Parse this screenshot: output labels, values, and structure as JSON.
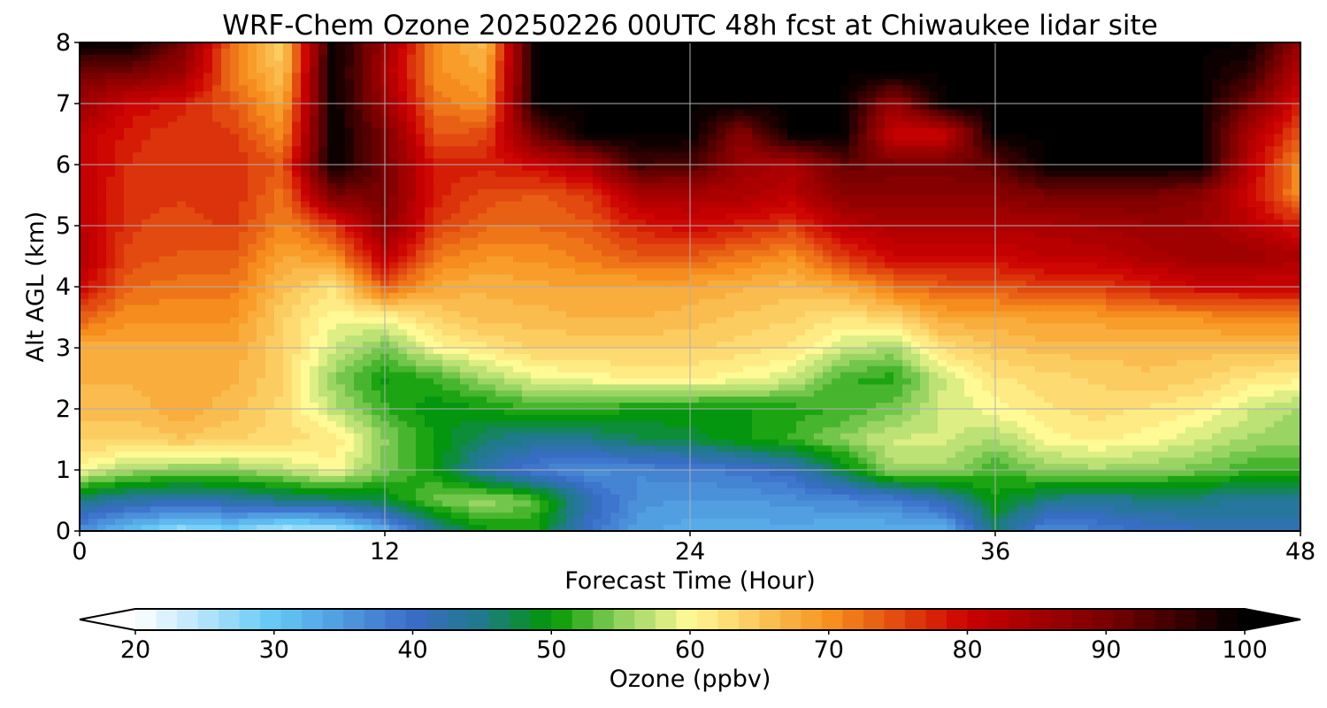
{
  "chart_data": {
    "type": "heatmap",
    "title": "WRF-Chem Ozone  20250226 00UTC 48h fcst at Chiwaukee lidar site",
    "xlabel": "Forecast Time (Hour)",
    "ylabel": "Alt AGL (km)",
    "xlim": [
      0,
      48
    ],
    "ylim": [
      0,
      8
    ],
    "xticks": [
      0,
      12,
      24,
      36,
      48
    ],
    "yticks": [
      0,
      1,
      2,
      3,
      4,
      5,
      6,
      7,
      8
    ],
    "grid": true,
    "x": [
      0,
      2,
      4,
      6,
      8,
      10,
      12,
      14,
      16,
      18,
      20,
      22,
      24,
      26,
      28,
      30,
      32,
      34,
      36,
      38,
      40,
      42,
      44,
      46,
      48
    ],
    "y": [
      0,
      0.5,
      1,
      1.5,
      2,
      2.5,
      3,
      3.5,
      4,
      4.5,
      5,
      5.5,
      6,
      6.5,
      7,
      7.5,
      8
    ],
    "z": [
      [
        36,
        30,
        26,
        28,
        24,
        25,
        32,
        44,
        50,
        50,
        40,
        34,
        33,
        33,
        33,
        32,
        32,
        32,
        46,
        36,
        38,
        40,
        41,
        42,
        42
      ],
      [
        45,
        43,
        42,
        43,
        45,
        46,
        48,
        54,
        56,
        53,
        42,
        36,
        35,
        35,
        36,
        37,
        38,
        42,
        50,
        45,
        44,
        45,
        45,
        44,
        44
      ],
      [
        60,
        56,
        55,
        55,
        57,
        60,
        54,
        50,
        42,
        38,
        36,
        37,
        38,
        39,
        41,
        48,
        56,
        56,
        52,
        55,
        56,
        55,
        54,
        52,
        52
      ],
      [
        64,
        64,
        65,
        64,
        63,
        62,
        55,
        50,
        46,
        44,
        45,
        47,
        48,
        50,
        52,
        55,
        58,
        58,
        56,
        60,
        61,
        60,
        58,
        56,
        55
      ],
      [
        66,
        66,
        68,
        66,
        63,
        57,
        52,
        49,
        50,
        52,
        52,
        50,
        50,
        50,
        51,
        52,
        54,
        58,
        60,
        62,
        63,
        62,
        61,
        58,
        56
      ],
      [
        67,
        67,
        67,
        67,
        64,
        55,
        50,
        52,
        56,
        59,
        60,
        61,
        61,
        60,
        58,
        52,
        51,
        58,
        62,
        63,
        64,
        65,
        64,
        62,
        61
      ],
      [
        67,
        68,
        68,
        68,
        64,
        58,
        54,
        60,
        62,
        64,
        64,
        64,
        64,
        63,
        62,
        58,
        56,
        63,
        65,
        66,
        66,
        66,
        66,
        66,
        66
      ],
      [
        74,
        70,
        70,
        70,
        64,
        60,
        60,
        64,
        66,
        66,
        67,
        67,
        66,
        65,
        64,
        62,
        64,
        68,
        68,
        69,
        69,
        70,
        70,
        71,
        71
      ],
      [
        80,
        73,
        72,
        72,
        66,
        62,
        74,
        68,
        67,
        68,
        68,
        68,
        68,
        67,
        66,
        68,
        72,
        74,
        74,
        76,
        76,
        78,
        80,
        80,
        80
      ],
      [
        84,
        75,
        74,
        74,
        68,
        70,
        82,
        72,
        70,
        70,
        72,
        74,
        74,
        72,
        70,
        76,
        80,
        80,
        80,
        82,
        82,
        84,
        86,
        86,
        84
      ],
      [
        82,
        76,
        75,
        76,
        71,
        76,
        88,
        76,
        73,
        73,
        74,
        78,
        80,
        78,
        76,
        82,
        84,
        84,
        84,
        84,
        85,
        86,
        86,
        82,
        78
      ],
      [
        82,
        76,
        76,
        77,
        72,
        90,
        90,
        78,
        75,
        74,
        76,
        84,
        84,
        84,
        82,
        88,
        88,
        88,
        88,
        90,
        90,
        90,
        88,
        80,
        70
      ],
      [
        82,
        77,
        76,
        77,
        74,
        100,
        90,
        78,
        78,
        80,
        84,
        95,
        94,
        86,
        84,
        92,
        90,
        90,
        92,
        100,
        100,
        100,
        100,
        82,
        70
      ],
      [
        82,
        78,
        76,
        76,
        70,
        100,
        90,
        74,
        75,
        92,
        100,
        100,
        100,
        88,
        100,
        100,
        80,
        80,
        100,
        100,
        100,
        100,
        100,
        84,
        74
      ],
      [
        86,
        80,
        78,
        74,
        68,
        100,
        86,
        72,
        70,
        100,
        100,
        100,
        100,
        100,
        100,
        100,
        86,
        100,
        100,
        100,
        100,
        100,
        100,
        90,
        78
      ],
      [
        90,
        90,
        86,
        72,
        65,
        100,
        84,
        70,
        68,
        100,
        100,
        100,
        100,
        100,
        100,
        100,
        100,
        100,
        100,
        100,
        100,
        100,
        100,
        96,
        82
      ],
      [
        100,
        100,
        90,
        72,
        64,
        100,
        86,
        70,
        66,
        100,
        100,
        100,
        100,
        100,
        100,
        100,
        100,
        100,
        100,
        100,
        100,
        100,
        100,
        100,
        86
      ]
    ],
    "colorbar": {
      "label": "Ozone  (ppbv)",
      "range": [
        20,
        100
      ],
      "ticks": [
        20,
        30,
        40,
        50,
        60,
        70,
        80,
        90,
        100
      ],
      "extend": "both",
      "colors": {
        "20": "#ffffff",
        "30": "#64c8f5",
        "40": "#3a6cc8",
        "45": "#1f7a8a",
        "50": "#009900",
        "55": "#8fd15e",
        "60": "#fffa96",
        "70": "#f7931e",
        "80": "#cc0000",
        "90": "#7a0000",
        "100": "#000000"
      },
      "under_color": "#ffffff",
      "over_color": "#000000"
    }
  }
}
